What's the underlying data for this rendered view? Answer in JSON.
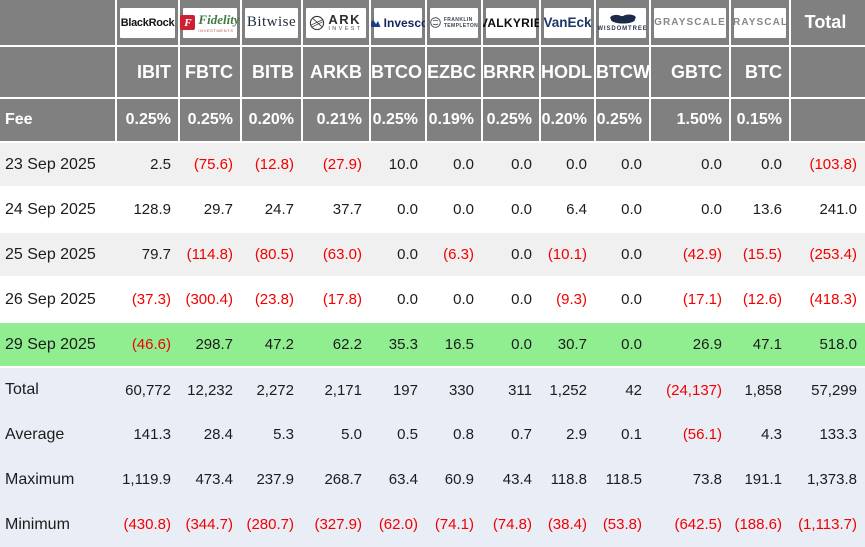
{
  "labels": {
    "fee": "Fee",
    "total_header": "Total"
  },
  "colors": {
    "header_gray": "#808080",
    "negative_red": "#f20000",
    "value_black": "#1c1c1c",
    "highlight_green": "#90ee90",
    "summary_bg": "#e9edf6",
    "stripe_gray": "#f0f0f0"
  },
  "providers": [
    {
      "ticker": "IBIT",
      "fee": "0.25%",
      "logo": {
        "style": "blackrock",
        "text": "BlackRock"
      }
    },
    {
      "ticker": "FBTC",
      "fee": "0.25%",
      "logo": {
        "style": "fidelity",
        "mark": "F",
        "text": "Fidelity",
        "subtext": "INVESTMENTS"
      }
    },
    {
      "ticker": "BITB",
      "fee": "0.20%",
      "logo": {
        "style": "bitwise",
        "text": "Bitwise"
      }
    },
    {
      "ticker": "ARKB",
      "fee": "0.21%",
      "logo": {
        "style": "ark",
        "text": "ARK",
        "subtext": "INVEST"
      }
    },
    {
      "ticker": "BTCO",
      "fee": "0.25%",
      "logo": {
        "style": "invesco",
        "text": "Invesco"
      }
    },
    {
      "ticker": "EZBC",
      "fee": "0.19%",
      "logo": {
        "style": "franklin",
        "text": "FRANKLIN",
        "subtext": "TEMPLETON"
      }
    },
    {
      "ticker": "BRRR",
      "fee": "0.25%",
      "logo": {
        "style": "valkyrie",
        "text": "VALKYRIE"
      }
    },
    {
      "ticker": "HODL",
      "fee": "0.20%",
      "logo": {
        "style": "vaneck",
        "text": "VanEck"
      }
    },
    {
      "ticker": "BTCW",
      "fee": "0.25%",
      "logo": {
        "style": "wisdomtree",
        "text": "WISDOMTREE"
      }
    },
    {
      "ticker": "GBTC",
      "fee": "1.50%",
      "logo": {
        "style": "grayscale",
        "text": "GRAYSCALE"
      }
    },
    {
      "ticker": "BTC",
      "fee": "0.15%",
      "logo": {
        "style": "grayscale",
        "text": "GRAYSCALE"
      }
    }
  ],
  "daily_rows": [
    {
      "date": "23 Sep 2025",
      "highlight": false,
      "values": [
        "2.5",
        "(75.6)",
        "(12.8)",
        "(27.9)",
        "10.0",
        "0.0",
        "0.0",
        "0.0",
        "0.0",
        "0.0",
        "0.0",
        "(103.8)"
      ]
    },
    {
      "date": "24 Sep 2025",
      "highlight": false,
      "values": [
        "128.9",
        "29.7",
        "24.7",
        "37.7",
        "0.0",
        "0.0",
        "0.0",
        "6.4",
        "0.0",
        "0.0",
        "13.6",
        "241.0"
      ]
    },
    {
      "date": "25 Sep 2025",
      "highlight": false,
      "values": [
        "79.7",
        "(114.8)",
        "(80.5)",
        "(63.0)",
        "0.0",
        "(6.3)",
        "0.0",
        "(10.1)",
        "0.0",
        "(42.9)",
        "(15.5)",
        "(253.4)"
      ]
    },
    {
      "date": "26 Sep 2025",
      "highlight": false,
      "values": [
        "(37.3)",
        "(300.4)",
        "(23.8)",
        "(17.8)",
        "0.0",
        "0.0",
        "0.0",
        "(9.3)",
        "0.0",
        "(17.1)",
        "(12.6)",
        "(418.3)"
      ]
    },
    {
      "date": "29 Sep 2025",
      "highlight": true,
      "values": [
        "(46.6)",
        "298.7",
        "47.2",
        "62.2",
        "35.3",
        "16.5",
        "0.0",
        "30.7",
        "0.0",
        "26.9",
        "47.1",
        "518.0"
      ]
    }
  ],
  "summary_rows": [
    {
      "label": "Total",
      "values": [
        "60,772",
        "12,232",
        "2,272",
        "2,171",
        "197",
        "330",
        "311",
        "1,252",
        "42",
        "(24,137)",
        "1,858",
        "57,299"
      ]
    },
    {
      "label": "Average",
      "values": [
        "141.3",
        "28.4",
        "5.3",
        "5.0",
        "0.5",
        "0.8",
        "0.7",
        "2.9",
        "0.1",
        "(56.1)",
        "4.3",
        "133.3"
      ]
    },
    {
      "label": "Maximum",
      "values": [
        "1,119.9",
        "473.4",
        "237.9",
        "268.7",
        "63.4",
        "60.9",
        "43.4",
        "118.8",
        "118.5",
        "73.8",
        "191.1",
        "1,373.8"
      ]
    },
    {
      "label": "Minimum",
      "values": [
        "(430.8)",
        "(344.7)",
        "(280.7)",
        "(327.9)",
        "(62.0)",
        "(74.1)",
        "(74.8)",
        "(38.4)",
        "(53.8)",
        "(642.5)",
        "(188.6)",
        "(1,113.7)"
      ]
    }
  ]
}
